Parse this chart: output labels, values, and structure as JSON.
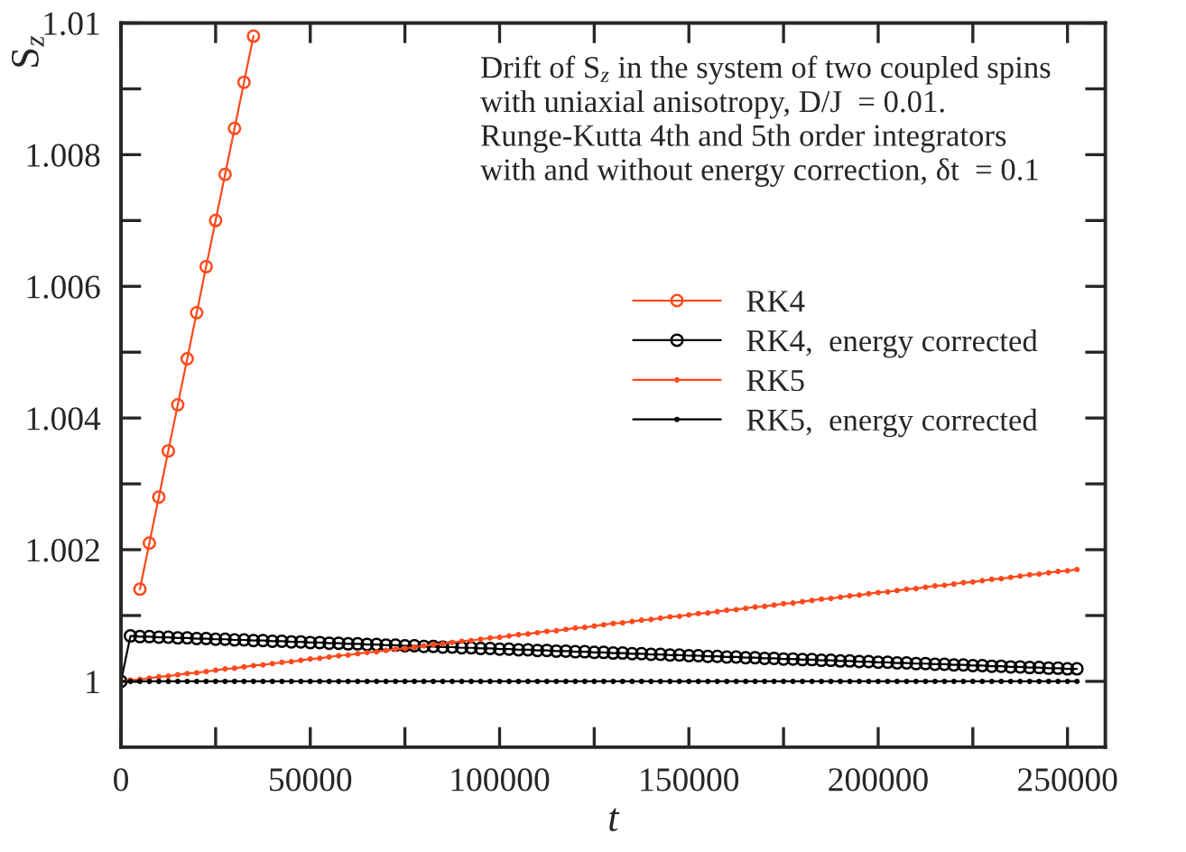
{
  "chart_data": {
    "type": "line",
    "xlabel": "t",
    "ylabel": "S$_{z}$",
    "annotations": [
      "Drift of S$_{z}$ in the system of two coupled spins\nwith uniaxial anisotropy, D/J  = 0.01.\nRunge-Kutta 4th and 5th order integrators\nwith and without energy correction, δt  = 0.1"
    ],
    "x": [
      0,
      2500,
      5000,
      7500,
      10000,
      12500,
      15000,
      17500,
      20000,
      22500,
      25000,
      27500,
      30000,
      32500,
      35000,
      37500,
      40000,
      42500,
      45000,
      47500,
      50000,
      52500,
      55000,
      57500,
      60000,
      62500,
      65000,
      67500,
      70000,
      72500,
      75000,
      77500,
      80000,
      82500,
      85000,
      87500,
      90000,
      92500,
      95000,
      97500,
      100000,
      102500,
      105000,
      107500,
      110000,
      112500,
      115000,
      117500,
      120000,
      122500,
      125000,
      127500,
      130000,
      132500,
      135000,
      137500,
      140000,
      142500,
      145000,
      147500,
      150000,
      152500,
      155000,
      157500,
      160000,
      162500,
      165000,
      167500,
      170000,
      172500,
      175000,
      177500,
      180000,
      182500,
      185000,
      187500,
      190000,
      192500,
      195000,
      197500,
      200000,
      202500,
      205000,
      207500,
      210000,
      212500,
      215000,
      217500,
      220000,
      222500,
      225000,
      227500,
      230000,
      232500,
      235000,
      237500,
      240000,
      242500,
      245000,
      247500,
      250000,
      252500
    ],
    "series": [
      {
        "name": "RK4",
        "color": "#ff4a1c",
        "marker": "circle",
        "x": [
          5000,
          7500,
          10000,
          12500,
          15000,
          17500,
          20000,
          22500,
          25000,
          27500,
          30000,
          32500,
          35000
        ],
        "values": [
          1.0014,
          1.0021,
          1.0028,
          1.0035,
          1.0042,
          1.0049,
          1.0056,
          1.0063,
          1.007,
          1.0077,
          1.0084,
          1.0091,
          1.0098
        ]
      },
      {
        "name": "RK4,  energy corrected",
        "color": "#000000",
        "marker": "circle",
        "values": [
          1,
          1.00069,
          1.00068,
          1.00068,
          1.00067,
          1.00067,
          1.00066,
          1.00066,
          1.00065,
          1.00065,
          1.00064,
          1.00064,
          1.00063,
          1.00063,
          1.00062,
          1.00062,
          1.00061,
          1.00061,
          1.0006,
          1.0006,
          1.00059,
          1.00059,
          1.00058,
          1.00058,
          1.00057,
          1.00057,
          1.00056,
          1.00056,
          1.00055,
          1.00055,
          1.00054,
          1.00054,
          1.00053,
          1.00053,
          1.00052,
          1.00052,
          1.00051,
          1.00051,
          1.0005,
          1.0005,
          1.00049,
          1.00049,
          1.00048,
          1.00048,
          1.00047,
          1.00047,
          1.00046,
          1.00046,
          1.00045,
          1.00045,
          1.00044,
          1.00044,
          1.00043,
          1.00043,
          1.00042,
          1.00042,
          1.00041,
          1.00041,
          1.0004,
          1.0004,
          1.00039,
          1.00039,
          1.00038,
          1.00038,
          1.00037,
          1.00037,
          1.00036,
          1.00036,
          1.00035,
          1.00035,
          1.00034,
          1.00034,
          1.00033,
          1.00033,
          1.00032,
          1.00032,
          1.00031,
          1.00031,
          1.0003,
          1.0003,
          1.00029,
          1.00029,
          1.00028,
          1.00028,
          1.00027,
          1.00027,
          1.00026,
          1.00026,
          1.00025,
          1.00025,
          1.00024,
          1.00024,
          1.00023,
          1.00023,
          1.00022,
          1.00022,
          1.00021,
          1.00021,
          1.0002,
          1.0002,
          1.00019,
          1.00019
        ]
      },
      {
        "name": "RK5",
        "color": "#ff4a1c",
        "marker": "point",
        "values": [
          1,
          1.00002,
          1.00003,
          1.00005,
          1.00007,
          1.00008,
          1.0001,
          1.00012,
          1.00013,
          1.00015,
          1.00017,
          1.00019,
          1.0002,
          1.00022,
          1.00024,
          1.00025,
          1.00027,
          1.00029,
          1.0003,
          1.00032,
          1.00034,
          1.00035,
          1.00037,
          1.00039,
          1.0004,
          1.00042,
          1.00044,
          1.00045,
          1.00047,
          1.00049,
          1.0005,
          1.00052,
          1.00054,
          1.00056,
          1.00057,
          1.00059,
          1.00061,
          1.00062,
          1.00064,
          1.00066,
          1.00067,
          1.00069,
          1.00071,
          1.00072,
          1.00074,
          1.00076,
          1.00077,
          1.00079,
          1.00081,
          1.00082,
          1.00084,
          1.00086,
          1.00088,
          1.00089,
          1.00091,
          1.00093,
          1.00094,
          1.00096,
          1.00098,
          1.00099,
          1.00101,
          1.00103,
          1.00104,
          1.00106,
          1.00108,
          1.00109,
          1.00111,
          1.00113,
          1.00114,
          1.00116,
          1.00118,
          1.00119,
          1.00121,
          1.00123,
          1.00125,
          1.00126,
          1.00128,
          1.0013,
          1.00131,
          1.00133,
          1.00135,
          1.00136,
          1.00138,
          1.0014,
          1.00141,
          1.00143,
          1.00145,
          1.00146,
          1.00148,
          1.0015,
          1.00151,
          1.00153,
          1.00155,
          1.00156,
          1.00158,
          1.0016,
          1.00162,
          1.00163,
          1.00165,
          1.00167,
          1.00168,
          1.0017
        ]
      },
      {
        "name": "RK5,  energy corrected",
        "color": "#000000",
        "marker": "point",
        "values": [
          1,
          1,
          1,
          1,
          1,
          1,
          1,
          1,
          1,
          1,
          1,
          1,
          1,
          1,
          1,
          1,
          1,
          1,
          1,
          1,
          1,
          1,
          1,
          1,
          1,
          1,
          1,
          1,
          1,
          1,
          1,
          1,
          1,
          1,
          1,
          1,
          1,
          1,
          1,
          1,
          1,
          1,
          1,
          1,
          1,
          1,
          1,
          1,
          1,
          1,
          1,
          1,
          1,
          1,
          1,
          1,
          1,
          1,
          1,
          1,
          1,
          1,
          1,
          1,
          1,
          1,
          1,
          1,
          1,
          1,
          1,
          1,
          1,
          1,
          1,
          1,
          1,
          1,
          1,
          1,
          1,
          1,
          1,
          1,
          1,
          1,
          1,
          1,
          1,
          1,
          1,
          1,
          1,
          1,
          1,
          1,
          1,
          1,
          1,
          1,
          1,
          1
        ]
      }
    ],
    "xlim": [
      0,
      260000
    ],
    "ylim": [
      0.999,
      1.01
    ],
    "xticks": [
      0,
      {
        "value": 25000,
        "label": null
      },
      50000,
      {
        "value": 75000,
        "label": null
      },
      100000,
      {
        "value": 125000,
        "label": null
      },
      150000,
      {
        "value": 175000,
        "label": null
      },
      200000,
      {
        "value": 225000,
        "label": null
      },
      250000
    ],
    "yticks": [
      1,
      {
        "value": 1.001,
        "label": null
      },
      1.002,
      {
        "value": 1.003,
        "label": null
      },
      1.004,
      {
        "value": 1.005,
        "label": null
      },
      1.006,
      {
        "value": 1.007,
        "label": null
      },
      1.008,
      {
        "value": 1.009,
        "label": null
      },
      1.01
    ],
    "legend": "right",
    "grid": false,
    "line_style": "solid"
  }
}
